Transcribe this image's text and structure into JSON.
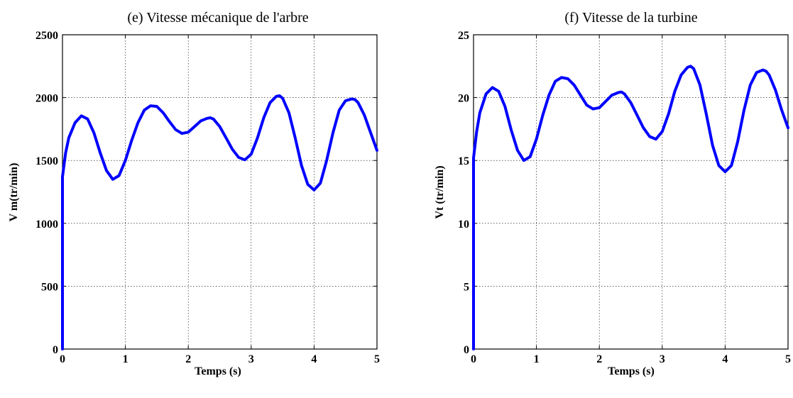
{
  "colors": {
    "series": "#0000ff",
    "axis": "#000000",
    "background": "#ffffff"
  },
  "chart_data": [
    {
      "type": "line",
      "title": "(e) Vitesse mécanique de l'arbre",
      "xlabel": "Temps (s)",
      "ylabel": "V m(tr/min)",
      "xlim": [
        0,
        5
      ],
      "ylim": [
        0,
        2500
      ],
      "xticks": [
        "0",
        "1",
        "2",
        "3",
        "4",
        "5"
      ],
      "yticks": [
        "0",
        "500",
        "1000",
        "1500",
        "2000",
        "2500"
      ],
      "grid": true,
      "series": [
        {
          "x": [
            0,
            0,
            0.05,
            0.1,
            0.2,
            0.3,
            0.4,
            0.5,
            0.6,
            0.7,
            0.8,
            0.9,
            1.0,
            1.1,
            1.2,
            1.3,
            1.4,
            1.5,
            1.6,
            1.7,
            1.8,
            1.9,
            2.0,
            2.1,
            2.2,
            2.3,
            2.35,
            2.4,
            2.5,
            2.6,
            2.7,
            2.8,
            2.9,
            3.0,
            3.1,
            3.2,
            3.3,
            3.4,
            3.45,
            3.5,
            3.6,
            3.7,
            3.8,
            3.9,
            4.0,
            4.1,
            4.2,
            4.3,
            4.4,
            4.5,
            4.6,
            4.65,
            4.7,
            4.8,
            4.9,
            5.0
          ],
          "y": [
            0,
            1370,
            1560,
            1680,
            1800,
            1855,
            1830,
            1720,
            1560,
            1420,
            1350,
            1380,
            1500,
            1660,
            1800,
            1900,
            1935,
            1930,
            1880,
            1810,
            1745,
            1715,
            1725,
            1770,
            1815,
            1835,
            1840,
            1830,
            1770,
            1680,
            1590,
            1525,
            1505,
            1550,
            1680,
            1840,
            1960,
            2010,
            2015,
            1995,
            1880,
            1680,
            1460,
            1310,
            1265,
            1320,
            1500,
            1720,
            1900,
            1975,
            1990,
            1985,
            1960,
            1860,
            1720,
            1580
          ]
        }
      ]
    },
    {
      "type": "line",
      "title": "(f) Vitesse de la turbine",
      "xlabel": "Temps (s)",
      "ylabel": "Vt (tr/min)",
      "xlim": [
        0,
        5
      ],
      "ylim": [
        0,
        25
      ],
      "xticks": [
        "0",
        "1",
        "2",
        "3",
        "4",
        "5"
      ],
      "yticks": [
        "0",
        "5",
        "10",
        "15",
        "20",
        "25"
      ],
      "grid": true,
      "series": [
        {
          "x": [
            0,
            0,
            0.05,
            0.1,
            0.2,
            0.3,
            0.4,
            0.5,
            0.6,
            0.7,
            0.8,
            0.9,
            1.0,
            1.1,
            1.2,
            1.3,
            1.4,
            1.5,
            1.6,
            1.7,
            1.8,
            1.9,
            2.0,
            2.1,
            2.2,
            2.3,
            2.35,
            2.4,
            2.5,
            2.6,
            2.7,
            2.8,
            2.9,
            3.0,
            3.1,
            3.2,
            3.3,
            3.4,
            3.45,
            3.5,
            3.6,
            3.7,
            3.8,
            3.9,
            4.0,
            4.1,
            4.2,
            4.3,
            4.4,
            4.5,
            4.6,
            4.65,
            4.7,
            4.8,
            4.9,
            5.0
          ],
          "y": [
            0,
            15.2,
            17.3,
            18.8,
            20.3,
            20.8,
            20.5,
            19.3,
            17.4,
            15.8,
            15.0,
            15.3,
            16.7,
            18.6,
            20.2,
            21.3,
            21.6,
            21.5,
            21.0,
            20.2,
            19.4,
            19.1,
            19.2,
            19.7,
            20.2,
            20.4,
            20.45,
            20.3,
            19.6,
            18.6,
            17.6,
            16.9,
            16.7,
            17.3,
            18.7,
            20.5,
            21.8,
            22.4,
            22.5,
            22.3,
            21.0,
            18.7,
            16.2,
            14.6,
            14.1,
            14.6,
            16.5,
            19.0,
            21.0,
            22.0,
            22.2,
            22.1,
            21.8,
            20.6,
            19.0,
            17.6
          ]
        }
      ]
    }
  ]
}
